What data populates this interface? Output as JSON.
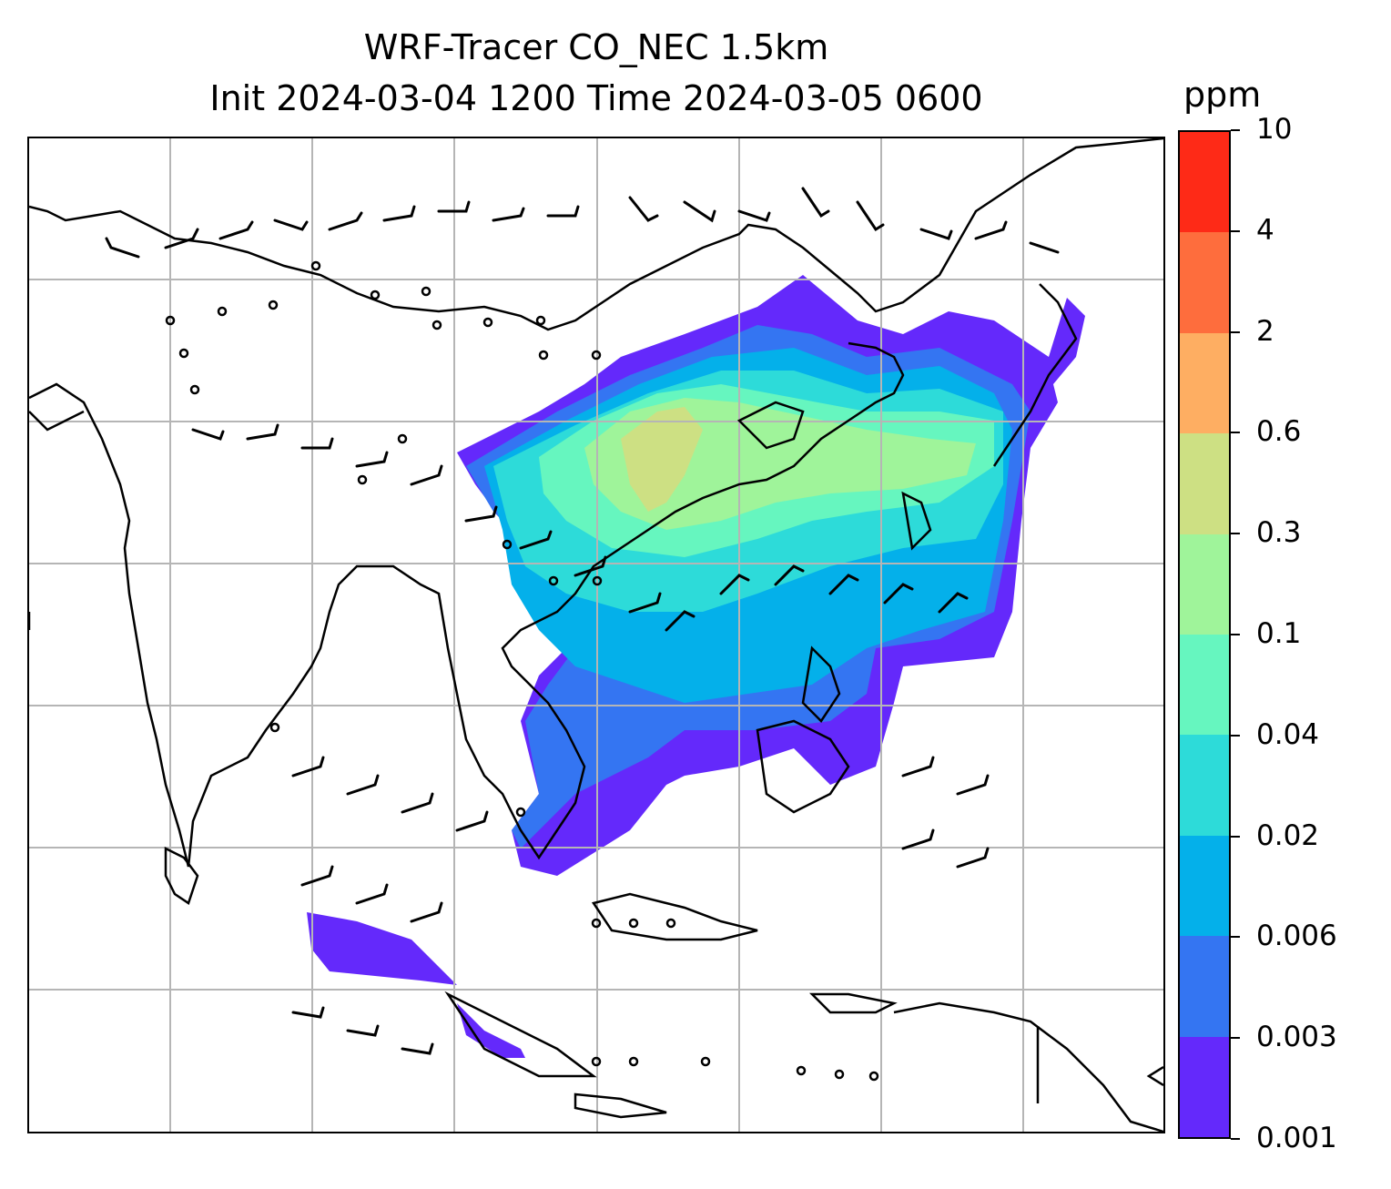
{
  "title_line1": "WRF-Tracer CO_NEC 1.5km",
  "title_line2": "Init 2024-03-04 1200 Time 2024-03-05 0600",
  "colorbar": {
    "unit": "ppm",
    "levels": [
      "0.001",
      "0.003",
      "0.006",
      "0.02",
      "0.04",
      "0.1",
      "0.3",
      "0.6",
      "2",
      "4",
      "10"
    ],
    "colors": [
      "#6429fb",
      "#3475f2",
      "#04b0ea",
      "#2ddbd9",
      "#66f6bf",
      "#9ff49a",
      "#cde083",
      "#feae62",
      "#fe6d3d",
      "#fe2a17"
    ]
  },
  "map": {
    "content": "CO tracer concentration shading with wind barbs over East and Southeast Asia; coastlines and country borders; lat/lon grid",
    "gridlines": true
  }
}
